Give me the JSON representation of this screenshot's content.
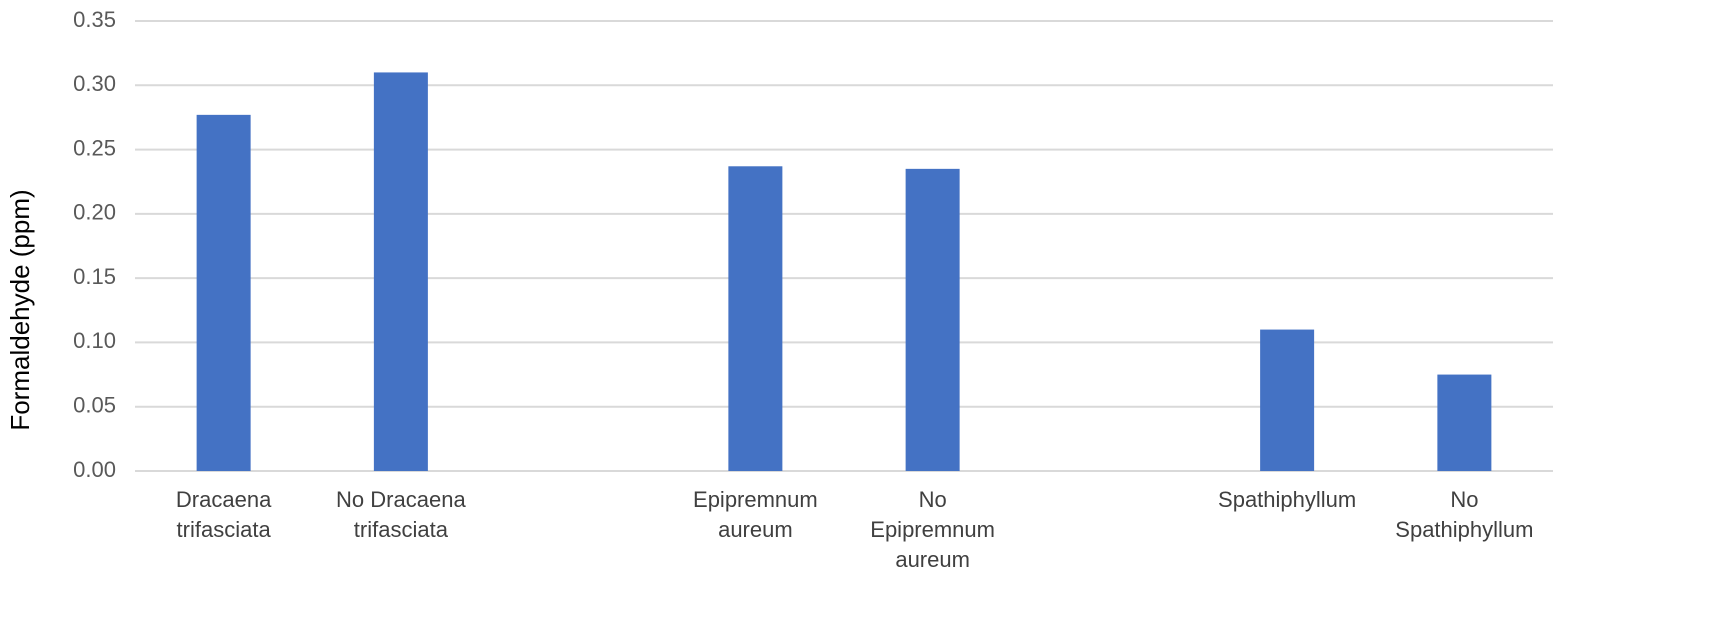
{
  "chart_data": {
    "type": "bar",
    "y_label": "Formaldehyde (ppm)",
    "categories": [
      "Dracaena\ntrifasciata",
      "No Dracaena\ntrifasciata",
      null,
      "Epipremnum\naureum",
      "No\nEpipremnum\naureum",
      null,
      "Spathiphyllum",
      "No\nSpathiphyllum"
    ],
    "values": [
      0.277,
      0.31,
      null,
      0.237,
      0.235,
      null,
      0.11,
      0.075
    ],
    "color": "#4472c4",
    "ylim": [
      0,
      0.35
    ],
    "yticks": [
      {
        "value": 0,
        "label": "0.00"
      },
      {
        "value": 0.05,
        "label": "0.05"
      },
      {
        "value": 0.1,
        "label": "0.10"
      },
      {
        "value": 0.15,
        "label": "0.15"
      },
      {
        "value": 0.2,
        "label": "0.20"
      },
      {
        "value": 0.25,
        "label": "0.25"
      },
      {
        "value": 0.3,
        "label": "0.30"
      },
      {
        "value": 0.35,
        "label": "0.35"
      }
    ],
    "grid": true
  }
}
